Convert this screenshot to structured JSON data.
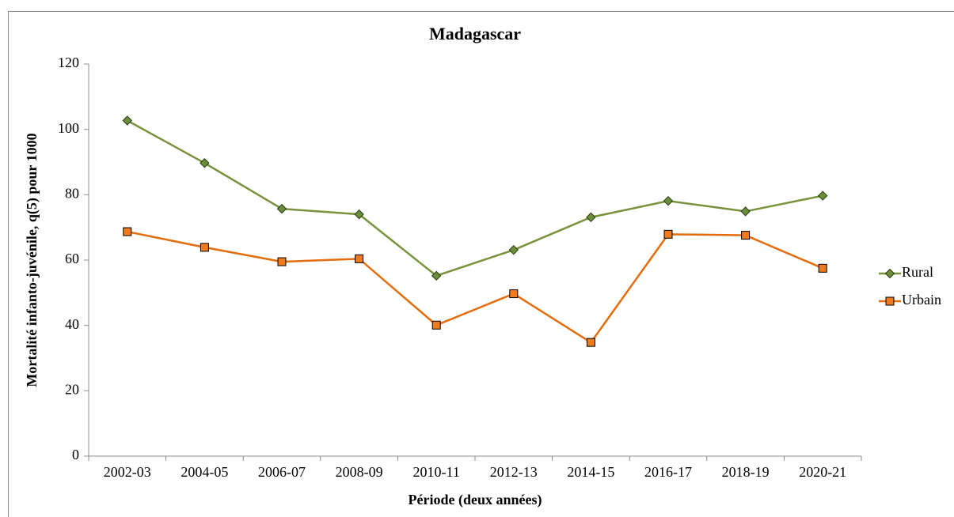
{
  "chart_data": {
    "type": "line",
    "title": "Madagascar",
    "x_label": "Période (deux années)",
    "y_label": "Mortalité infanto-juvénile, q(5) pour 1000",
    "categories": [
      "2002-03",
      "2004-05",
      "2006-07",
      "2008-09",
      "2010-11",
      "2012-13",
      "2014-15",
      "2016-17",
      "2018-19",
      "2020-21"
    ],
    "series": [
      {
        "name": "Rural",
        "color": "#77933c",
        "marker": "diamond",
        "marker_color": "#6b8e3a",
        "values": [
          102.7,
          89.7,
          75.7,
          74.0,
          55.2,
          63.1,
          73.1,
          78.1,
          74.9,
          79.7
        ]
      },
      {
        "name": "Urbain",
        "color": "#e46c0a",
        "marker": "square",
        "marker_color": "#f07a1e",
        "values": [
          68.7,
          63.9,
          59.5,
          60.4,
          40.1,
          49.7,
          34.8,
          67.9,
          67.6,
          57.5
        ]
      }
    ],
    "ylim": [
      0,
      120
    ],
    "yticks": [
      0,
      20,
      40,
      60,
      80,
      100,
      120
    ],
    "grid": false,
    "legend": "right"
  }
}
